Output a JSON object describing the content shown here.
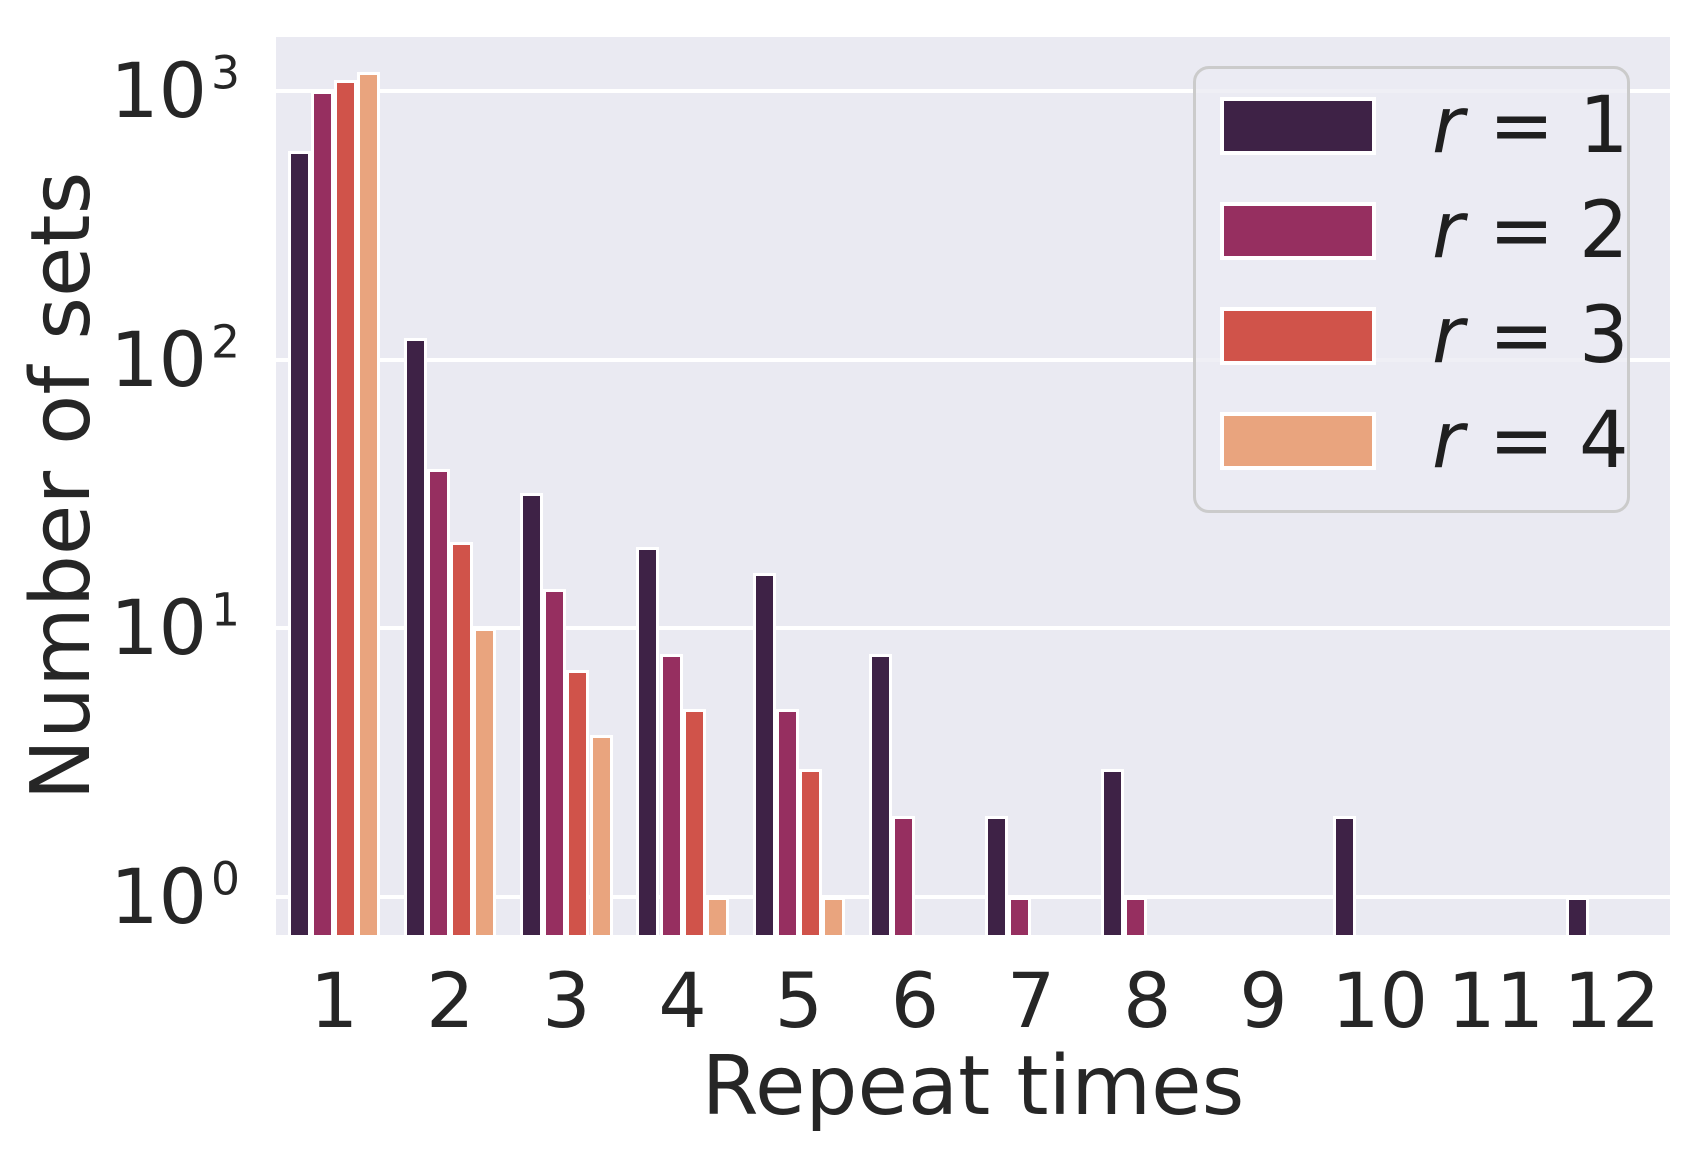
{
  "chart_data": {
    "type": "bar",
    "title": "",
    "xlabel": "Repeat times",
    "ylabel": "Number of sets",
    "categories": [
      "1",
      "2",
      "3",
      "4",
      "5",
      "6",
      "7",
      "8",
      "9",
      "10",
      "11",
      "12"
    ],
    "yscale": "log",
    "ylim": [
      0.72,
      1580
    ],
    "yticks": [
      {
        "base": "10",
        "exponent": "0",
        "value": 1
      },
      {
        "base": "10",
        "exponent": "1",
        "value": 10
      },
      {
        "base": "10",
        "exponent": "2",
        "value": 100
      },
      {
        "base": "10",
        "exponent": "3",
        "value": 1000
      }
    ],
    "grid": true,
    "legend_position": "upper right",
    "series": [
      {
        "name": "r = 1",
        "color": "#3e2246",
        "values": [
          600,
          120,
          32,
          20,
          16,
          8,
          2,
          3,
          null,
          2,
          null,
          1
        ]
      },
      {
        "name": "r = 2",
        "color": "#962f60",
        "values": [
          1000,
          39,
          14,
          8,
          5,
          2,
          1,
          1,
          null,
          null,
          null,
          null
        ]
      },
      {
        "name": "r = 3",
        "color": "#d0534a",
        "values": [
          1100,
          21,
          7,
          5,
          3,
          null,
          null,
          null,
          null,
          null,
          null,
          null
        ]
      },
      {
        "name": "r = 4",
        "color": "#e9a47e",
        "values": [
          1180,
          10,
          4,
          1,
          1,
          null,
          null,
          null,
          null,
          null,
          null,
          null
        ]
      }
    ]
  },
  "style": {
    "plot_background": "#eaeaf2",
    "grid_color": "#ffffff",
    "text_color": "#262626",
    "bar_edge_color": "#ffffff",
    "legend_border_color": "#cbcbcb"
  }
}
